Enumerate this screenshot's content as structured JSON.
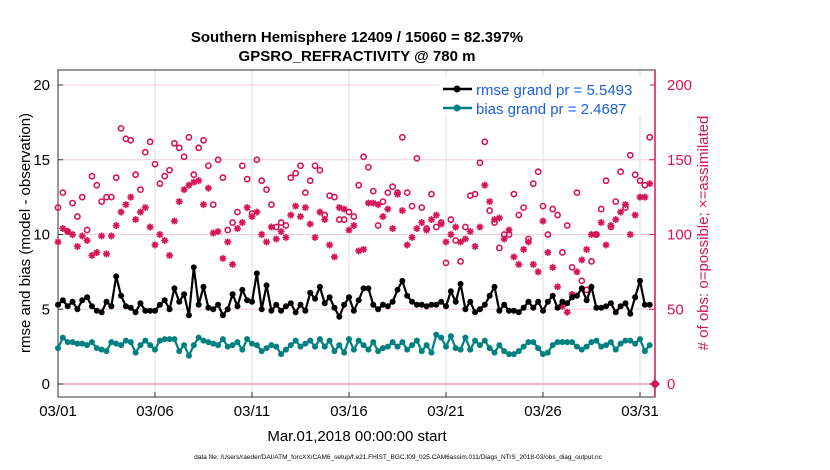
{
  "chart_data": {
    "type": "line",
    "title": "Southern Hemisphere 12409 / 15060 = 82.397%",
    "subtitle": "GPSRO_REFRACTIVITY @ 780 m",
    "xlabel": "Mar.01,2018 00:00:00 start",
    "ylabel": "rmse and bias (model - observation)",
    "ylabel_right": "# of obs: o=possible; ×=assimilated",
    "footer": "data file: /Users/raeder/DAI/ATM_forcXX/CAM6_setup/f.e21.FHIST_BGC.f09_025.CAM6assim.011/Diags_NTrS_2018-03/obs_diag_output.nc",
    "xlim_days": [
      0,
      30.8
    ],
    "ylim": [
      0,
      21
    ],
    "ylim_right": [
      0,
      210
    ],
    "x_step_days": 0.25,
    "x_ticks": [
      {
        "day": 0,
        "label": "03/01"
      },
      {
        "day": 5,
        "label": "03/06"
      },
      {
        "day": 10,
        "label": "03/11"
      },
      {
        "day": 15,
        "label": "03/16"
      },
      {
        "day": 20,
        "label": "03/21"
      },
      {
        "day": 25,
        "label": "03/26"
      },
      {
        "day": 30,
        "label": "03/31"
      }
    ],
    "y_ticks": [
      "0",
      "5",
      "10",
      "15",
      "20"
    ],
    "y_ticks_right": [
      "0",
      "50",
      "100",
      "150",
      "200"
    ],
    "legend_position": "top-right",
    "colors": {
      "rmse": "#000000",
      "bias": "#008080",
      "obs": "#d6145a",
      "legend_text": "#1f5fe0"
    },
    "series": [
      {
        "name": "rmse grand pr = 5.5493",
        "axis": "left",
        "values": [
          5.3,
          5.6,
          5.2,
          5.5,
          5.0,
          5.6,
          5.8,
          5.2,
          4.9,
          4.8,
          5.5,
          5.2,
          7.2,
          5.9,
          5.2,
          5.1,
          4.8,
          5.4,
          4.9,
          4.9,
          4.9,
          5.3,
          5.6,
          5.0,
          6.4,
          5.5,
          6.0,
          4.6,
          7.8,
          5.3,
          6.5,
          5.1,
          5.0,
          5.3,
          4.6,
          5.0,
          6.0,
          5.2,
          6.3,
          5.6,
          5.5,
          7.4,
          5.0,
          6.6,
          4.9,
          5.3,
          4.9,
          5.2,
          5.4,
          4.8,
          5.3,
          4.9,
          6.1,
          5.7,
          6.5,
          5.4,
          5.8,
          5.1,
          4.5,
          5.3,
          5.8,
          4.9,
          5.6,
          6.4,
          6.4,
          5.3,
          5.0,
          5.3,
          5.2,
          5.5,
          6.3,
          6.9,
          5.9,
          5.5,
          5.3,
          5.3,
          5.2,
          5.3,
          5.3,
          5.5,
          5.2,
          6.2,
          5.5,
          6.7,
          5.0,
          5.5,
          4.8,
          5.0,
          5.3,
          5.9,
          6.5,
          4.9,
          5.3,
          4.9,
          4.9,
          4.8,
          5.1,
          5.5,
          5.1,
          5.5,
          4.9,
          5.5,
          5.9,
          5.1,
          5.5,
          5.4,
          5.8,
          5.9,
          6.4,
          5.6,
          6.5,
          5.1,
          5.1,
          5.2,
          5.4,
          4.8,
          5.2,
          5.4,
          4.7,
          5.8,
          6.9,
          5.3,
          5.3
        ]
      },
      {
        "name": "bias grand pr = 2.4687",
        "axis": "left",
        "values": [
          2.4,
          3.1,
          2.8,
          2.8,
          2.7,
          2.7,
          2.6,
          2.8,
          2.4,
          2.3,
          2.2,
          2.8,
          2.7,
          2.6,
          2.9,
          2.8,
          2.1,
          2.6,
          2.9,
          2.6,
          2.3,
          2.9,
          3.0,
          3.0,
          3.0,
          2.2,
          2.6,
          1.9,
          2.6,
          3.1,
          2.9,
          2.8,
          2.7,
          2.6,
          3.0,
          2.5,
          2.6,
          2.8,
          2.3,
          3.0,
          2.7,
          2.6,
          2.2,
          2.4,
          2.6,
          2.5,
          2.0,
          2.3,
          2.6,
          2.9,
          2.5,
          2.7,
          2.9,
          2.5,
          3.0,
          2.5,
          2.9,
          2.2,
          2.6,
          2.1,
          3.0,
          2.3,
          2.9,
          2.6,
          2.3,
          2.8,
          2.2,
          2.4,
          2.5,
          2.8,
          2.5,
          2.8,
          2.3,
          2.6,
          2.9,
          2.2,
          2.6,
          2.1,
          3.3,
          3.1,
          2.5,
          3.2,
          2.4,
          2.3,
          3.1,
          2.3,
          2.9,
          2.6,
          2.9,
          2.4,
          2.1,
          2.6,
          2.2,
          2.0,
          2.0,
          2.2,
          2.5,
          2.8,
          2.8,
          2.4,
          2.0,
          2.1,
          2.6,
          2.8,
          2.8,
          2.8,
          2.8,
          2.5,
          2.3,
          2.5,
          2.8,
          2.9,
          2.5,
          2.6,
          2.8,
          2.3,
          2.7,
          2.9,
          2.9,
          2.7,
          3.0,
          2.2,
          2.6
        ]
      },
      {
        "name": "possible",
        "axis": "right",
        "marker": "circle",
        "values": [
          118,
          128,
          102,
          121,
          112,
          125,
          103,
          139,
          133,
          122,
          125,
          125,
          138,
          171,
          164,
          163,
          140,
          130,
          155,
          162,
          147,
          134,
          139,
          143,
          161,
          158,
          152,
          165,
          140,
          158,
          163,
          146,
          120,
          150,
          138,
          103,
          108,
          115,
          146,
          137,
          114,
          150,
          136,
          130,
          120,
          105,
          108,
          106,
          138,
          141,
          146,
          128,
          136,
          146,
          143,
          113,
          126,
          125,
          110,
          110,
          115,
          112,
          133,
          152,
          145,
          129,
          106,
          122,
          128,
          132,
          128,
          165,
          128,
          119,
          151,
          118,
          104,
          127,
          105,
          108,
          81,
          110,
          96,
          82,
          105,
          126,
          127,
          148,
          162,
          116,
          108,
          91,
          100,
          100,
          127,
          113,
          118,
          97,
          134,
          142,
          119,
          100,
          117,
          113,
          88,
          106,
          78,
          128,
          69,
          63,
          82,
          100,
          117,
          136,
          105,
          122,
          142,
          118,
          153,
          140,
          136,
          133,
          165
        ]
      },
      {
        "name": "assimilated",
        "axis": "right",
        "marker": "star",
        "values": [
          95,
          104,
          102,
          100,
          92,
          99,
          96,
          86,
          88,
          99,
          87,
          99,
          106,
          115,
          120,
          125,
          110,
          115,
          118,
          105,
          93,
          100,
          96,
          86,
          109,
          122,
          130,
          133,
          135,
          136,
          120,
          131,
          101,
          102,
          84,
          95,
          80,
          104,
          108,
          118,
          112,
          115,
          100,
          95,
          105,
          97,
          102,
          98,
          113,
          119,
          112,
          118,
          107,
          98,
          115,
          110,
          93,
          85,
          118,
          117,
          103,
          106,
          89,
          90,
          121,
          121,
          120,
          112,
          117,
          104,
          127,
          116,
          93,
          98,
          104,
          108,
          103,
          110,
          113,
          107,
          95,
          100,
          105,
          95,
          97,
          102,
          92,
          105,
          133,
          122,
          110,
          111,
          97,
          103,
          85,
          80,
          90,
          95,
          80,
          75,
          109,
          88,
          78,
          65,
          52,
          48,
          60,
          75,
          83,
          90,
          100,
          100,
          108,
          93,
          106,
          110,
          115,
          120,
          100,
          113,
          125,
          125,
          134
        ]
      }
    ]
  }
}
